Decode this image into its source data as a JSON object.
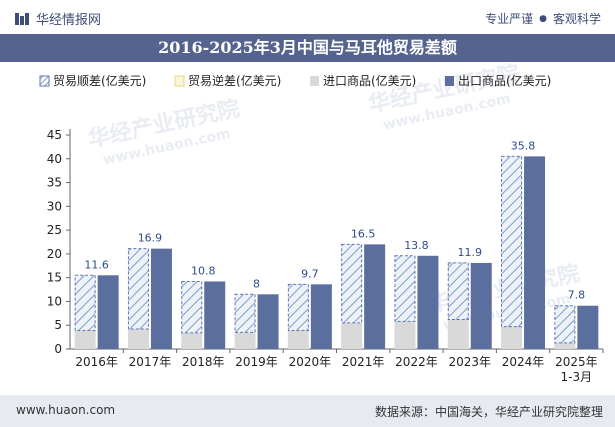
{
  "header": {
    "brand": "华经情报网",
    "slogan_left": "专业严谨",
    "slogan_dot": "●",
    "slogan_right": "客观科学"
  },
  "footer": {
    "left": "www.huaon.com",
    "right": "数据来源：中国海关，华经产业研究院整理"
  },
  "watermark": {
    "cn": "华经产业研究院",
    "url": "www.huaon.com"
  },
  "colors": {
    "title_bg": "#55648f",
    "surplus": "#cfd9e8",
    "surplus_hatch": "#5b78b2",
    "deficit": "#e9d87a",
    "imports": "#d9d9d9",
    "exports": "#5a6f9e",
    "label": "#2f4d8c"
  },
  "chart_data": {
    "type": "bar",
    "title": "2016-2025年3月中国与马耳他贸易差额",
    "categories": [
      [
        "2016年"
      ],
      [
        "2017年"
      ],
      [
        "2018年"
      ],
      [
        "2019年"
      ],
      [
        "2020年"
      ],
      [
        "2021年"
      ],
      [
        "2022年"
      ],
      [
        "2023年"
      ],
      [
        "2024年"
      ],
      [
        "2025年",
        "1-3月"
      ]
    ],
    "ylim": [
      0,
      45
    ],
    "yticks": [
      0,
      5,
      10,
      15,
      20,
      25,
      30,
      35,
      40,
      45
    ],
    "legend_position": "top",
    "series": [
      {
        "name": "贸易顺差(亿美元)",
        "values": [
          11.6,
          16.9,
          10.8,
          8,
          9.7,
          16.5,
          13.8,
          11.9,
          35.8,
          7.8
        ],
        "labels": [
          "11.6",
          "16.9",
          "10.8",
          "8",
          "9.7",
          "16.5",
          "13.8",
          "11.9",
          "35.8",
          "7.8"
        ]
      },
      {
        "name": "贸易逆差(亿美元)",
        "values": [
          0,
          0,
          0,
          0,
          0,
          0,
          0,
          0,
          0,
          0
        ]
      },
      {
        "name": "进口商品(亿美元)",
        "values": [
          3.9,
          4.2,
          3.4,
          3.5,
          3.9,
          5.5,
          5.8,
          6.2,
          4.7,
          1.3
        ]
      },
      {
        "name": "出口商品(亿美元)",
        "values": [
          15.5,
          21.1,
          14.2,
          11.5,
          13.6,
          22.0,
          19.6,
          18.1,
          40.5,
          9.1
        ]
      }
    ]
  }
}
